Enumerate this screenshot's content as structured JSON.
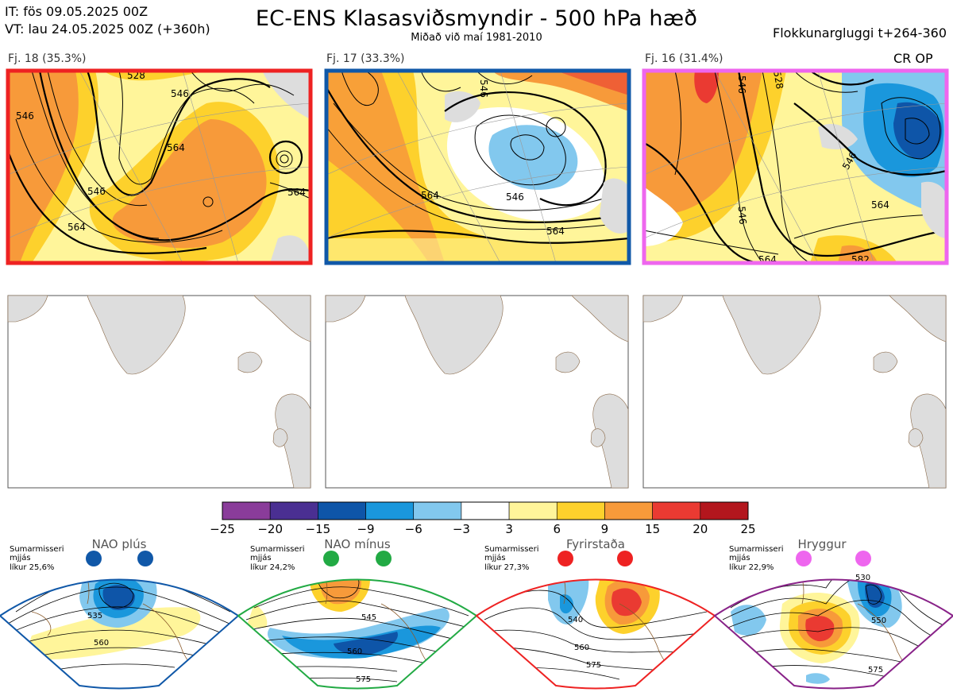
{
  "header": {
    "it_line": "IT: fös 09.05.2025 00Z",
    "vt_line": "VT: lau 24.05.2025 00Z  (+360h)",
    "title": "EC-ENS Klasasviðsmyndir - 500 hPa hæð",
    "subtitle": "Miðað við maí 1981-2010",
    "window": "Flokkunargluggi t+264-360"
  },
  "clusters": [
    {
      "label": "Fj. 18 (35.3%)",
      "border_color": "#ee2222",
      "contour_labels": [
        "528",
        "546",
        "546",
        "564",
        "546",
        "564",
        "564"
      ]
    },
    {
      "label": "Fj. 17 (33.3%)",
      "border_color": "#1058a8",
      "contour_labels": [
        "546",
        "546",
        "564",
        "564"
      ]
    },
    {
      "label": "Fj. 16 (31.4%)",
      "border_color": "#ee66ee",
      "contour_labels": [
        "546",
        "528",
        "546",
        "546",
        "564",
        "564",
        "582"
      ]
    }
  ],
  "cr_op": "CR OP",
  "colorbar": {
    "ticks": [
      "−25",
      "−20",
      "−15",
      "−9",
      "−6",
      "−3",
      "3",
      "6",
      "9",
      "15",
      "20",
      "25"
    ],
    "colors": [
      "#8a3c9a",
      "#4a2f92",
      "#0e55a8",
      "#1a97dc",
      "#82c8ee",
      "#ffffff",
      "#fff59a",
      "#fdd12c",
      "#f79a3a",
      "#ea3a32",
      "#b3161d"
    ]
  },
  "regimes": [
    {
      "name": "NAO plús",
      "note": [
        "Sumarmisseri",
        "mjjás",
        "líkur 25,6%"
      ],
      "dot_color": "#1058a8",
      "frame_color": "#1058a8",
      "contour_labels": [
        "535",
        "560"
      ]
    },
    {
      "name": "NAO mínus",
      "note": [
        "Sumarmisseri",
        "mjjás",
        "líkur 24,2%"
      ],
      "dot_color": "#22aa44",
      "frame_color": "#22aa44",
      "contour_labels": [
        "545",
        "560",
        "575"
      ]
    },
    {
      "name": "Fyrirstaða",
      "note": [
        "Sumarmisseri",
        "mjjás",
        "líkur 27,3%"
      ],
      "dot_color": "#ee2222",
      "frame_color": "#ee2222",
      "contour_labels": [
        "540",
        "560",
        "575"
      ]
    },
    {
      "name": "Hryggur",
      "note": [
        "Sumarmisseri",
        "mjjás",
        "líkur 22,9%"
      ],
      "dot_color": "#ee66ee",
      "frame_color": "#882288",
      "contour_labels": [
        "530",
        "550",
        "575"
      ]
    }
  ]
}
